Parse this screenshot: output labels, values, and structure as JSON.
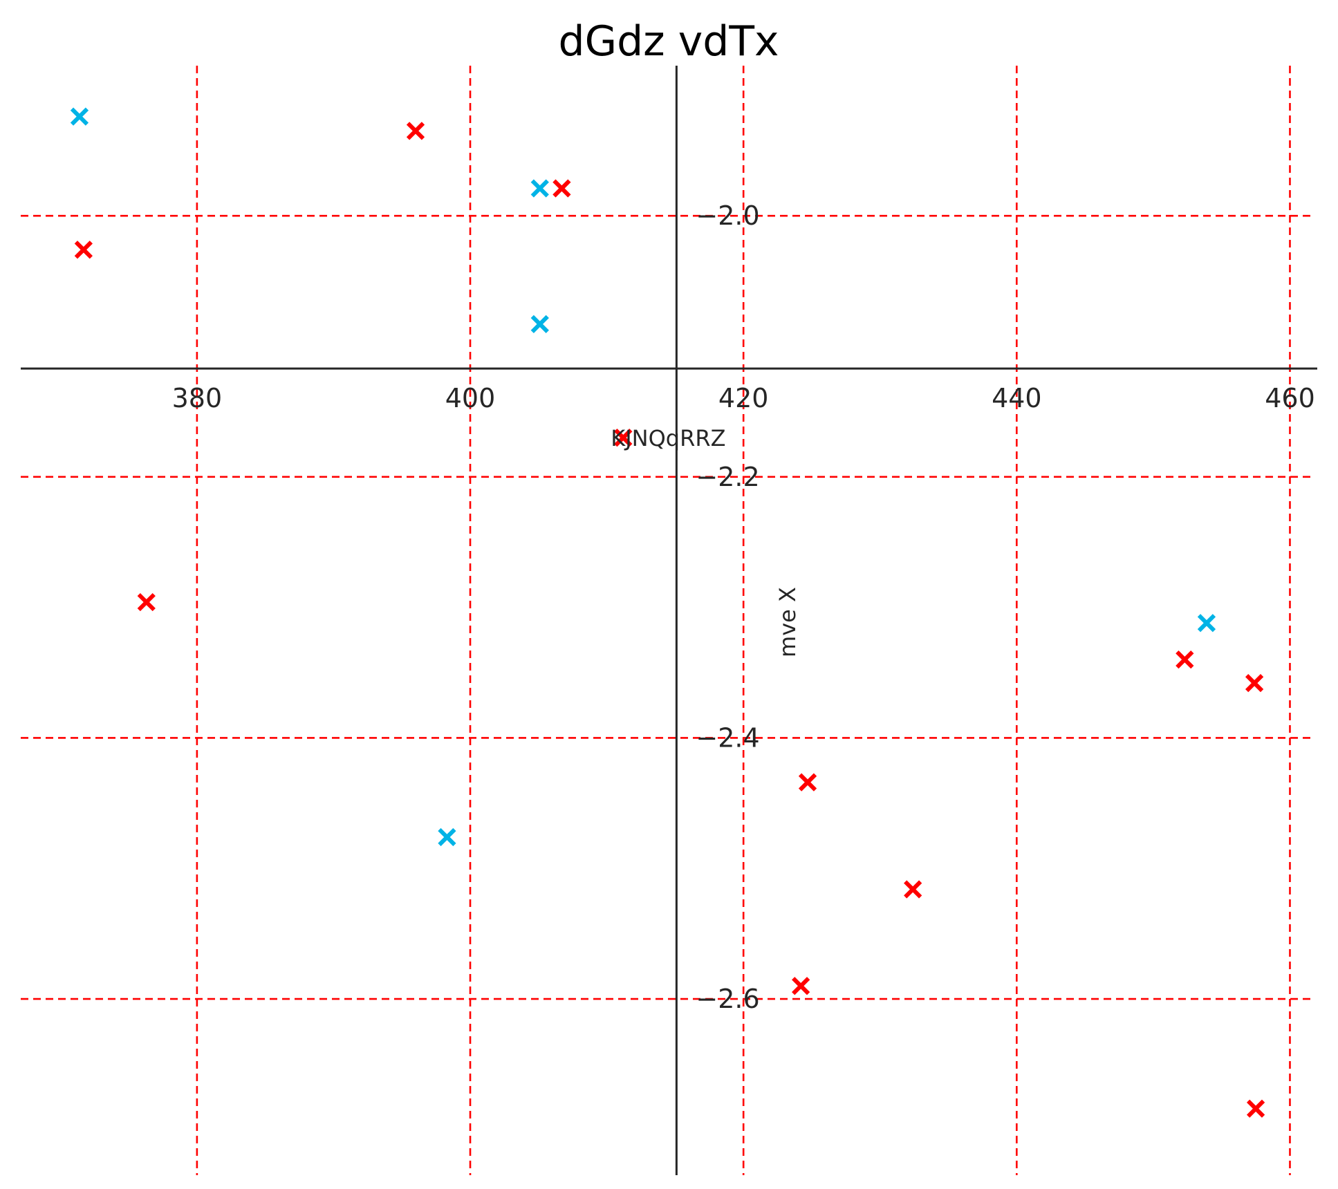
{
  "chart_data": {
    "type": "scatter",
    "title": "dGdz vdTx",
    "xlabel": "KJNQqRRZ",
    "ylabel": "mve X",
    "xlim": [
      367.1,
      462.0
    ],
    "ylim": [
      -2.735,
      -1.885
    ],
    "x_ticks": [
      380,
      400,
      420,
      440,
      460
    ],
    "x_tick_labels": [
      "380",
      "400",
      "420",
      "440",
      "460"
    ],
    "y_ticks": [
      -2.6,
      -2.4,
      -2.2,
      -2.0
    ],
    "y_tick_labels": [
      "−2.6",
      "−2.4",
      "−2.2",
      "−2.0"
    ],
    "grid": true,
    "grid_color": "#ff0000",
    "marker": "x",
    "series": [
      {
        "color": "#00b3e6",
        "points": [
          {
            "x": 371.4,
            "y": -1.924
          },
          {
            "x": 405.1,
            "y": -1.979
          },
          {
            "x": 405.1,
            "y": -2.083
          },
          {
            "x": 398.3,
            "y": -2.476
          },
          {
            "x": 453.9,
            "y": -2.312
          }
        ]
      },
      {
        "color": "#ff0000",
        "points": [
          {
            "x": 371.7,
            "y": -2.026
          },
          {
            "x": 396.0,
            "y": -1.935
          },
          {
            "x": 406.7,
            "y": -1.979
          },
          {
            "x": 411.2,
            "y": -2.17
          },
          {
            "x": 376.3,
            "y": -2.296
          },
          {
            "x": 424.7,
            "y": -2.434
          },
          {
            "x": 432.4,
            "y": -2.516
          },
          {
            "x": 424.2,
            "y": -2.59
          },
          {
            "x": 452.3,
            "y": -2.34
          },
          {
            "x": 457.4,
            "y": -2.358
          },
          {
            "x": 457.5,
            "y": -2.684
          }
        ]
      }
    ]
  }
}
